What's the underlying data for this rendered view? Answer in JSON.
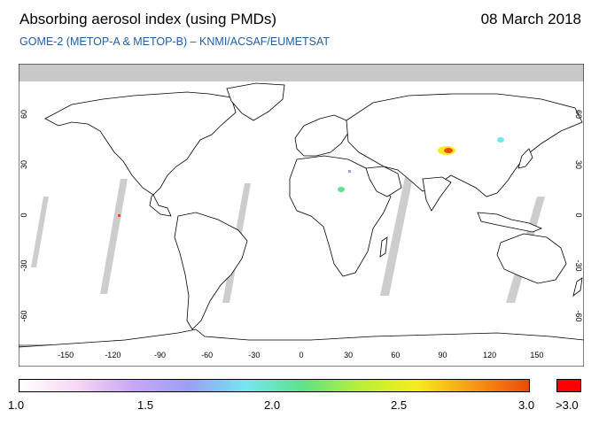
{
  "header": {
    "title": "Absorbing aerosol index (using PMDs)",
    "date": "08 March 2018",
    "subtitle": "GOME-2 (METOP-A & METOP-B)  –  KNMI/ACSAF/EUMETSAT"
  },
  "map": {
    "lon_ticks": [
      "-150",
      "-120",
      "-90",
      "-60",
      "-30",
      "0",
      "30",
      "60",
      "90",
      "120",
      "150"
    ],
    "lat_ticks": [
      "60",
      "30",
      "0",
      "-30",
      "-60"
    ],
    "lon_range": [
      -180,
      180
    ],
    "lat_range": [
      -90,
      90
    ],
    "colors": {
      "no_data": "#c8c8c8",
      "land_outline": "#000000",
      "background": "#ffffff"
    }
  },
  "colorbar": {
    "labels": [
      "1.0",
      "1.5",
      "2.0",
      "2.5",
      "3.0"
    ],
    "overflow_label": ">3.0",
    "range": [
      1.0,
      3.0
    ],
    "gradient": [
      "#ffffff",
      "#f7d8f4",
      "#c9a6f5",
      "#9aa0f5",
      "#74e6f2",
      "#5ee28a",
      "#b8ef3a",
      "#f6ec20",
      "#f59a14",
      "#ec4b08"
    ],
    "overflow_color": "#ff0000"
  }
}
